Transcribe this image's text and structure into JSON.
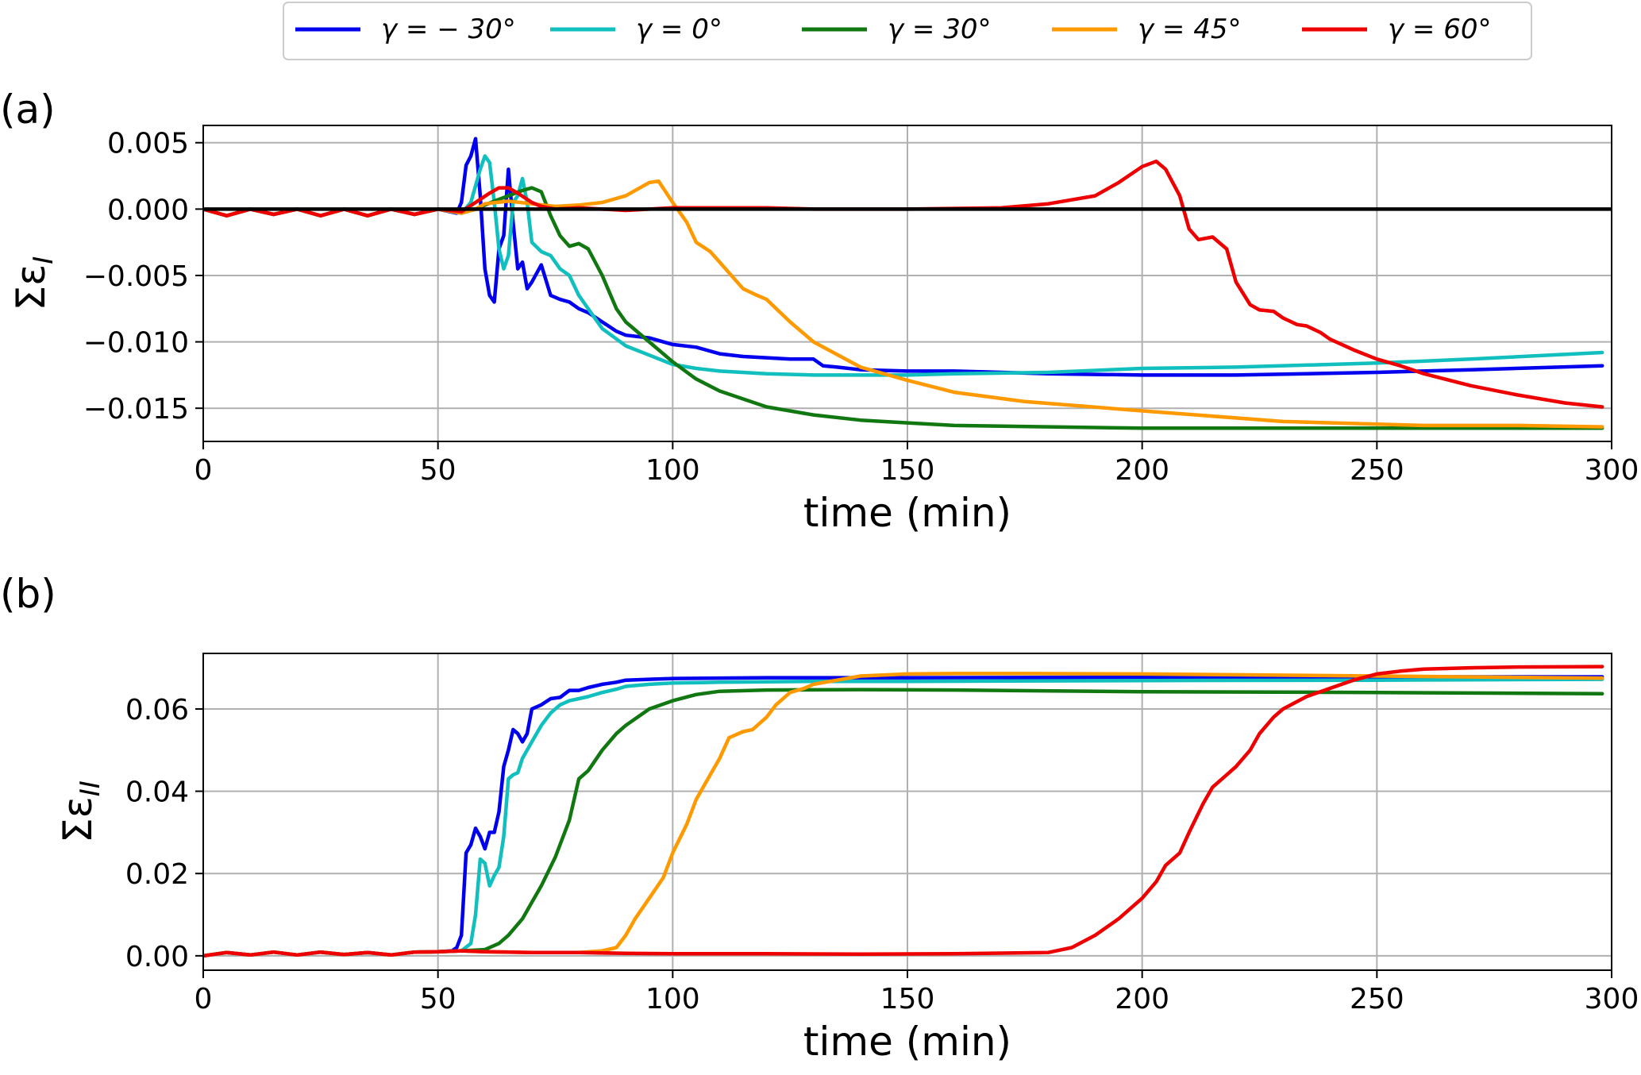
{
  "legend": {
    "entries": [
      {
        "label": "γ = − 30°",
        "color": "#0000ee"
      },
      {
        "label": "γ = 0°",
        "color": "#11bfbf"
      },
      {
        "label": "γ = 30°",
        "color": "#117711"
      },
      {
        "label": "γ = 45°",
        "color": "#ff9900"
      },
      {
        "label": "γ = 60°",
        "color": "#ee0000"
      }
    ]
  },
  "chart_data": [
    {
      "type": "line",
      "panel_label": "(a)",
      "xlabel": "time (min)",
      "ylabel": "Σε_I",
      "xlim": [
        0,
        300
      ],
      "ylim": [
        -0.0175,
        0.0063
      ],
      "xticks": [
        "0",
        "50",
        "100",
        "150",
        "200",
        "250",
        "300"
      ],
      "yticks": [
        "0.005",
        "0.000",
        "−0.005",
        "−0.010",
        "−0.015"
      ],
      "ytick_values": [
        0.005,
        0.0,
        -0.005,
        -0.01,
        -0.015
      ],
      "grid": true,
      "zero_line": true,
      "series": [
        {
          "name": "γ = − 30°",
          "color": "#0000ee",
          "x": [
            0,
            5,
            10,
            15,
            20,
            25,
            30,
            35,
            40,
            45,
            50,
            54,
            55,
            56,
            57,
            58,
            59,
            60,
            61,
            62,
            63,
            64,
            65,
            66,
            67,
            68,
            69,
            70,
            72,
            74,
            76,
            78,
            80,
            82,
            85,
            88,
            90,
            95,
            100,
            105,
            110,
            115,
            120,
            125,
            130,
            132,
            135,
            140,
            150,
            160,
            170,
            180,
            200,
            220,
            250,
            270,
            298
          ],
          "y": [
            0,
            -0.0005,
            0,
            -0.0004,
            0,
            -0.0005,
            0,
            -0.0005,
            0,
            -0.0004,
            0,
            -0.0003,
            0.0005,
            0.0033,
            0.004,
            0.0053,
            0.001,
            -0.0045,
            -0.0065,
            -0.007,
            -0.003,
            -0.002,
            0.003,
            -0.001,
            -0.0045,
            -0.004,
            -0.006,
            -0.0055,
            -0.0042,
            -0.0065,
            -0.0068,
            -0.007,
            -0.0075,
            -0.0078,
            -0.0085,
            -0.0092,
            -0.0095,
            -0.0097,
            -0.0102,
            -0.0104,
            -0.0109,
            -0.0111,
            -0.0112,
            -0.0113,
            -0.0113,
            -0.0118,
            -0.0119,
            -0.0121,
            -0.0122,
            -0.0122,
            -0.0123,
            -0.0124,
            -0.0125,
            -0.0125,
            -0.0123,
            -0.0121,
            -0.0118
          ]
        },
        {
          "name": "γ = 0°",
          "color": "#11bfbf",
          "x": [
            0,
            5,
            10,
            15,
            20,
            25,
            30,
            35,
            40,
            45,
            50,
            55,
            57,
            59,
            60,
            61,
            62,
            63,
            64,
            65,
            66,
            67,
            68,
            69,
            70,
            72,
            74,
            76,
            78,
            80,
            85,
            90,
            95,
            100,
            105,
            110,
            120,
            130,
            140,
            150,
            160,
            180,
            200,
            220,
            250,
            270,
            298
          ],
          "y": [
            0,
            -0.0005,
            0,
            -0.0004,
            0,
            -0.0005,
            0,
            -0.0005,
            0,
            -0.0004,
            0,
            -0.0003,
            0.0005,
            0.003,
            0.004,
            0.0035,
            0.0005,
            -0.003,
            -0.0045,
            -0.0035,
            0.0005,
            0.001,
            0.0023,
            0.0005,
            -0.0025,
            -0.0032,
            -0.0035,
            -0.0045,
            -0.005,
            -0.0065,
            -0.009,
            -0.0103,
            -0.011,
            -0.0117,
            -0.012,
            -0.0122,
            -0.0124,
            -0.0125,
            -0.0125,
            -0.0125,
            -0.0124,
            -0.0123,
            -0.012,
            -0.0119,
            -0.0116,
            -0.0113,
            -0.0108
          ]
        },
        {
          "name": "γ = 30°",
          "color": "#117711",
          "x": [
            0,
            5,
            10,
            15,
            20,
            25,
            30,
            35,
            40,
            45,
            50,
            55,
            58,
            60,
            62,
            65,
            68,
            70,
            72,
            74,
            76,
            78,
            80,
            82,
            85,
            88,
            90,
            95,
            100,
            105,
            110,
            120,
            130,
            140,
            150,
            160,
            180,
            200,
            220,
            250,
            270,
            298
          ],
          "y": [
            0,
            -0.0005,
            0,
            -0.0004,
            0,
            -0.0005,
            0,
            -0.0005,
            0,
            -0.0004,
            0,
            -0.0003,
            0,
            0.0003,
            0.0006,
            0.001,
            0.0014,
            0.0016,
            0.0013,
            -0.0005,
            -0.002,
            -0.0028,
            -0.0026,
            -0.003,
            -0.005,
            -0.0075,
            -0.0085,
            -0.01,
            -0.0115,
            -0.0128,
            -0.0137,
            -0.0149,
            -0.0155,
            -0.0159,
            -0.0161,
            -0.0163,
            -0.0164,
            -0.0165,
            -0.0165,
            -0.0165,
            -0.0165,
            -0.0165
          ]
        },
        {
          "name": "γ = 45°",
          "color": "#ff9900",
          "x": [
            0,
            5,
            10,
            15,
            20,
            25,
            30,
            35,
            40,
            45,
            50,
            55,
            58,
            60,
            65,
            70,
            75,
            80,
            85,
            90,
            95,
            97,
            100,
            103,
            105,
            108,
            110,
            115,
            118,
            120,
            125,
            130,
            140,
            150,
            160,
            175,
            200,
            230,
            260,
            280,
            298
          ],
          "y": [
            0,
            -0.0005,
            0,
            -0.0004,
            0,
            -0.0005,
            0,
            -0.0005,
            0,
            -0.0004,
            0,
            -0.0003,
            0,
            0.0004,
            0.0006,
            0.0004,
            0.0002,
            0.0003,
            0.0005,
            0.001,
            0.002,
            0.0021,
            0.0005,
            -0.001,
            -0.0025,
            -0.0032,
            -0.004,
            -0.006,
            -0.0065,
            -0.0068,
            -0.0085,
            -0.01,
            -0.0119,
            -0.0129,
            -0.0138,
            -0.0145,
            -0.0152,
            -0.016,
            -0.0163,
            -0.0163,
            -0.0164
          ]
        },
        {
          "name": "γ = 60°",
          "color": "#ee0000",
          "x": [
            0,
            5,
            10,
            15,
            20,
            25,
            30,
            35,
            40,
            45,
            50,
            55,
            58,
            61,
            63,
            65,
            67,
            70,
            72,
            75,
            80,
            90,
            100,
            110,
            120,
            130,
            150,
            170,
            180,
            190,
            195,
            200,
            203,
            205,
            208,
            210,
            212,
            215,
            218,
            220,
            223,
            225,
            228,
            230,
            233,
            235,
            238,
            240,
            245,
            250,
            255,
            260,
            270,
            280,
            290,
            298
          ],
          "y": [
            0,
            -0.0005,
            0,
            -0.0004,
            0,
            -0.0005,
            0,
            -0.0005,
            0,
            -0.0004,
            0,
            -0.0002,
            0.0005,
            0.0012,
            0.0016,
            0.0016,
            0.0012,
            0.0005,
            0.0002,
            0,
            0.0001,
            -0.0001,
            0.0001,
            0.0001,
            0.0001,
            0,
            0,
            0.0001,
            0.0004,
            0.001,
            0.002,
            0.0032,
            0.0036,
            0.003,
            0.001,
            -0.0015,
            -0.0023,
            -0.0021,
            -0.003,
            -0.0055,
            -0.0072,
            -0.0076,
            -0.0077,
            -0.0082,
            -0.0087,
            -0.0088,
            -0.0093,
            -0.0098,
            -0.0106,
            -0.0113,
            -0.0118,
            -0.0124,
            -0.0133,
            -0.014,
            -0.0146,
            -0.0149
          ]
        }
      ]
    },
    {
      "type": "line",
      "panel_label": "(b)",
      "xlabel": "time (min)",
      "ylabel": "Σε_II",
      "xlim": [
        0,
        300
      ],
      "ylim": [
        -0.0035,
        0.0735
      ],
      "xticks": [
        "0",
        "50",
        "100",
        "150",
        "200",
        "250",
        "300"
      ],
      "yticks": [
        "0.00",
        "0.02",
        "0.04",
        "0.06"
      ],
      "ytick_values": [
        0.0,
        0.02,
        0.04,
        0.06
      ],
      "grid": true,
      "zero_line": false,
      "series": [
        {
          "name": "γ = − 30°",
          "color": "#0000ee",
          "x": [
            0,
            5,
            10,
            15,
            20,
            25,
            30,
            35,
            40,
            45,
            50,
            53,
            54,
            55,
            56,
            57,
            58,
            59,
            60,
            61,
            62,
            63,
            64,
            65,
            66,
            67,
            68,
            69,
            70,
            72,
            74,
            76,
            78,
            80,
            82,
            85,
            88,
            90,
            95,
            100,
            110,
            120,
            130,
            150,
            200,
            250,
            298
          ],
          "y": [
            0,
            0.0008,
            0.0002,
            0.0009,
            0.0002,
            0.0009,
            0.0003,
            0.0008,
            0.0002,
            0.0009,
            0.001,
            0.0012,
            0.002,
            0.005,
            0.025,
            0.027,
            0.031,
            0.029,
            0.026,
            0.03,
            0.03,
            0.035,
            0.046,
            0.05,
            0.055,
            0.054,
            0.052,
            0.054,
            0.06,
            0.061,
            0.0625,
            0.0628,
            0.0645,
            0.0645,
            0.0652,
            0.066,
            0.0665,
            0.067,
            0.0672,
            0.0674,
            0.0675,
            0.0676,
            0.0676,
            0.0676,
            0.0677,
            0.0678,
            0.0678
          ]
        },
        {
          "name": "γ = 0°",
          "color": "#11bfbf",
          "x": [
            0,
            5,
            10,
            15,
            20,
            25,
            30,
            35,
            40,
            45,
            50,
            55,
            57,
            58,
            59,
            60,
            61,
            62,
            63,
            64,
            65,
            66,
            67,
            68,
            70,
            72,
            74,
            76,
            78,
            80,
            82,
            85,
            88,
            90,
            95,
            100,
            110,
            120,
            130,
            150,
            200,
            250,
            298
          ],
          "y": [
            0,
            0.0008,
            0.0002,
            0.0009,
            0.0002,
            0.0009,
            0.0003,
            0.0008,
            0.0002,
            0.0009,
            0.001,
            0.0012,
            0.003,
            0.01,
            0.0235,
            0.0225,
            0.017,
            0.0195,
            0.0215,
            0.029,
            0.043,
            0.044,
            0.0445,
            0.048,
            0.052,
            0.056,
            0.059,
            0.061,
            0.062,
            0.0625,
            0.063,
            0.064,
            0.0648,
            0.0655,
            0.066,
            0.0663,
            0.0665,
            0.0666,
            0.0667,
            0.0667,
            0.0669,
            0.067,
            0.0672
          ]
        },
        {
          "name": "γ = 30°",
          "color": "#117711",
          "x": [
            0,
            5,
            10,
            15,
            20,
            25,
            30,
            35,
            40,
            45,
            50,
            55,
            60,
            63,
            65,
            68,
            70,
            72,
            75,
            78,
            80,
            82,
            85,
            88,
            90,
            95,
            100,
            105,
            110,
            120,
            140,
            160,
            200,
            250,
            298
          ],
          "y": [
            0,
            0.0008,
            0.0002,
            0.0009,
            0.0002,
            0.0009,
            0.0003,
            0.0008,
            0.0002,
            0.0009,
            0.001,
            0.0012,
            0.0015,
            0.003,
            0.005,
            0.009,
            0.013,
            0.017,
            0.024,
            0.033,
            0.043,
            0.045,
            0.05,
            0.054,
            0.056,
            0.06,
            0.062,
            0.0635,
            0.0643,
            0.0646,
            0.0647,
            0.0646,
            0.0642,
            0.064,
            0.0637
          ]
        },
        {
          "name": "γ = 45°",
          "color": "#ff9900",
          "x": [
            0,
            5,
            10,
            15,
            20,
            25,
            30,
            35,
            40,
            45,
            50,
            55,
            60,
            70,
            80,
            85,
            88,
            90,
            92,
            95,
            98,
            100,
            103,
            105,
            108,
            110,
            112,
            115,
            117,
            120,
            122,
            125,
            128,
            130,
            135,
            140,
            150,
            160,
            175,
            200,
            250,
            298
          ],
          "y": [
            0,
            0.0008,
            0.0002,
            0.0009,
            0.0002,
            0.0009,
            0.0003,
            0.0008,
            0.0002,
            0.0009,
            0.001,
            0.0012,
            0.001,
            0.0008,
            0.0008,
            0.0012,
            0.002,
            0.005,
            0.009,
            0.014,
            0.019,
            0.025,
            0.032,
            0.038,
            0.044,
            0.048,
            0.053,
            0.0545,
            0.055,
            0.058,
            0.061,
            0.064,
            0.065,
            0.066,
            0.067,
            0.068,
            0.0685,
            0.0686,
            0.0686,
            0.0685,
            0.068,
            0.0675
          ]
        },
        {
          "name": "γ = 60°",
          "color": "#ee0000",
          "x": [
            0,
            5,
            10,
            15,
            20,
            25,
            30,
            35,
            40,
            45,
            50,
            55,
            60,
            70,
            80,
            90,
            100,
            120,
            140,
            160,
            180,
            185,
            190,
            195,
            200,
            203,
            205,
            208,
            210,
            213,
            215,
            218,
            220,
            223,
            225,
            228,
            230,
            235,
            240,
            245,
            250,
            255,
            260,
            270,
            280,
            298
          ],
          "y": [
            0,
            0.0008,
            0.0002,
            0.0009,
            0.0002,
            0.0009,
            0.0003,
            0.0008,
            0.0002,
            0.0009,
            0.001,
            0.0012,
            0.001,
            0.0008,
            0.0008,
            0.0006,
            0.0005,
            0.0005,
            0.0004,
            0.0005,
            0.0008,
            0.002,
            0.005,
            0.009,
            0.014,
            0.018,
            0.022,
            0.025,
            0.03,
            0.037,
            0.041,
            0.044,
            0.046,
            0.05,
            0.054,
            0.058,
            0.06,
            0.063,
            0.065,
            0.067,
            0.0685,
            0.0692,
            0.0697,
            0.07,
            0.0702,
            0.0703
          ]
        }
      ]
    }
  ]
}
